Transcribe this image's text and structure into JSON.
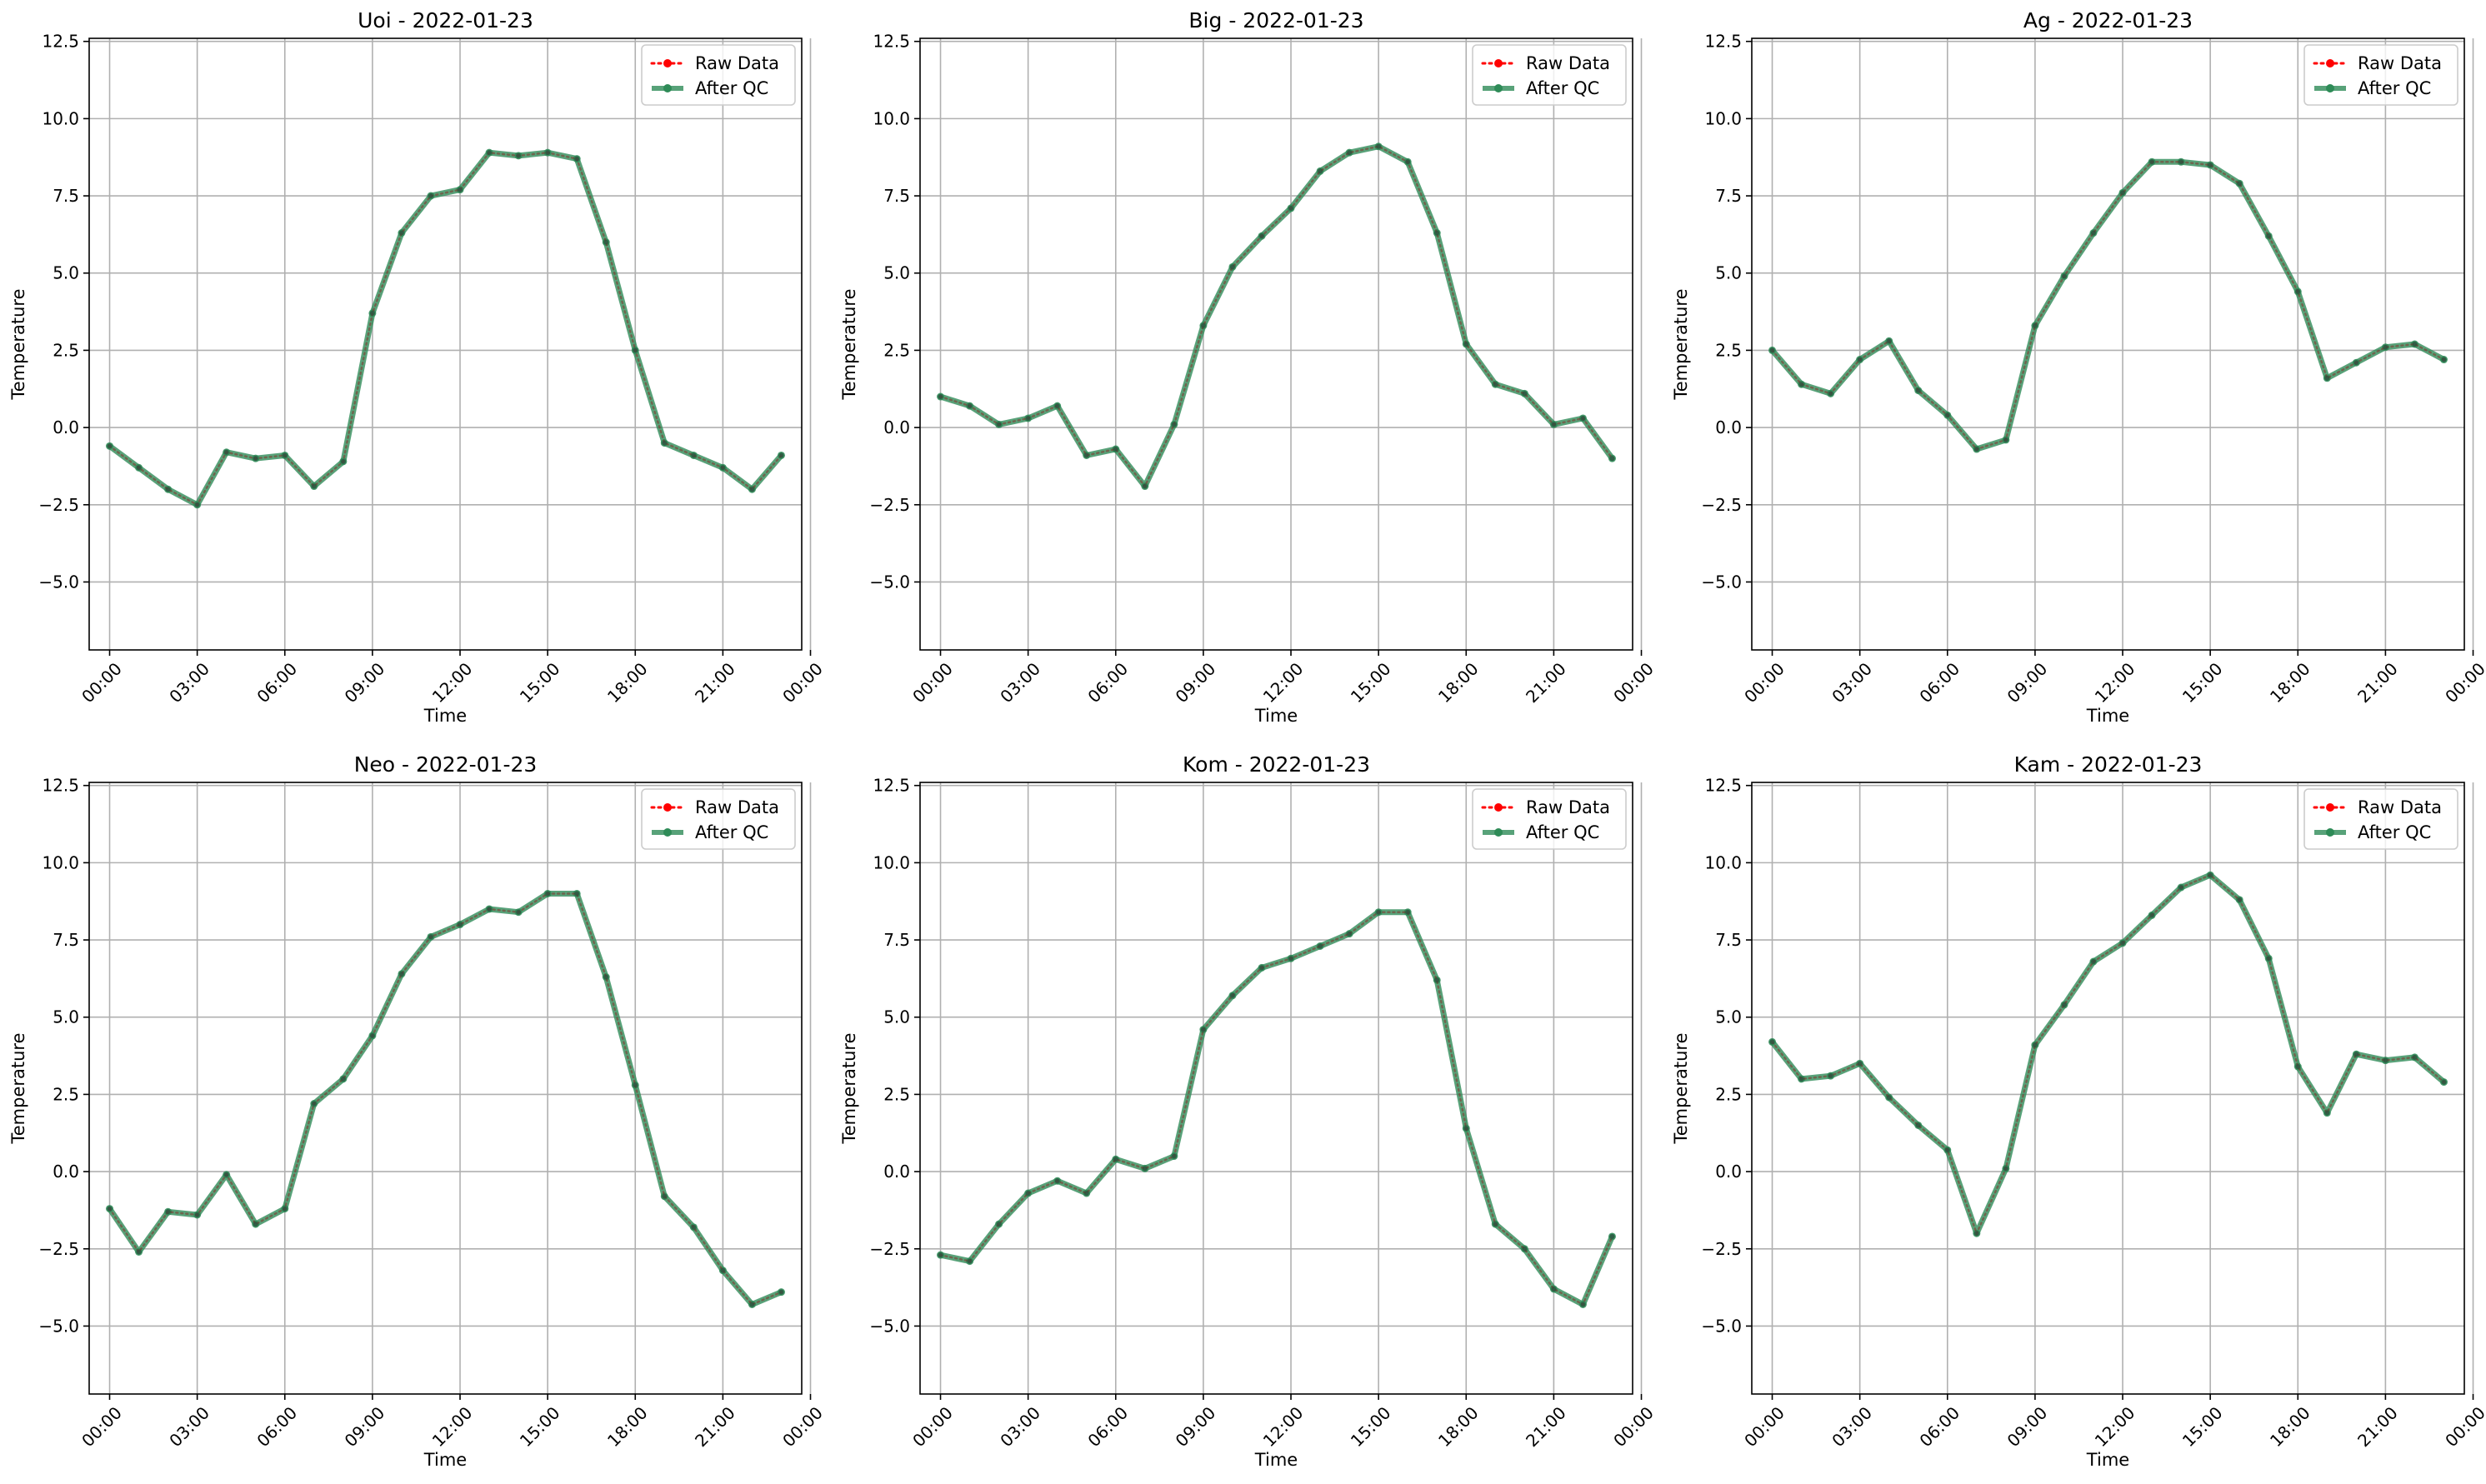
{
  "chart_data": [
    {
      "type": "line",
      "title": "Uoi - 2022-01-23",
      "xlabel": "Time",
      "ylabel": "Temperature",
      "xticks": [
        "00:00",
        "03:00",
        "06:00",
        "09:00",
        "12:00",
        "15:00",
        "18:00",
        "21:00",
        "00:00"
      ],
      "xlim": [
        -0.7,
        23.7
      ],
      "ylim": [
        -7.2,
        12.6
      ],
      "yticks": [
        "−5.0",
        "−2.5",
        "0.0",
        "2.5",
        "5.0",
        "7.5",
        "10.0",
        "12.5"
      ],
      "grid": true,
      "legend": "top-right",
      "x": [
        0,
        1,
        2,
        3,
        4,
        5,
        6,
        7,
        8,
        9,
        10,
        11,
        12,
        13,
        14,
        15,
        16,
        17,
        18,
        19,
        20,
        21,
        22,
        23
      ],
      "series": [
        {
          "name": "Raw Data",
          "style": "dotted",
          "color": "#ff0000",
          "values": [
            -0.6,
            -1.3,
            -2.0,
            -2.5,
            -0.8,
            -1.0,
            -0.9,
            -1.9,
            -1.1,
            3.7,
            6.3,
            7.5,
            7.7,
            8.9,
            8.8,
            8.9,
            8.7,
            6.0,
            2.5,
            -0.5,
            -0.9,
            -1.3,
            -2.0,
            -0.9
          ]
        },
        {
          "name": "After QC",
          "style": "solid",
          "color": "#2e8b57",
          "values": [
            -0.6,
            -1.3,
            -2.0,
            -2.5,
            -0.8,
            -1.0,
            -0.9,
            -1.9,
            -1.1,
            3.7,
            6.3,
            7.5,
            7.7,
            8.9,
            8.8,
            8.9,
            8.7,
            6.0,
            2.5,
            -0.5,
            -0.9,
            -1.3,
            -2.0,
            -0.9
          ]
        }
      ]
    },
    {
      "type": "line",
      "title": "Big - 2022-01-23",
      "xlabel": "Time",
      "ylabel": "Temperature",
      "xticks": [
        "00:00",
        "03:00",
        "06:00",
        "09:00",
        "12:00",
        "15:00",
        "18:00",
        "21:00",
        "00:00"
      ],
      "xlim": [
        -0.7,
        23.7
      ],
      "ylim": [
        -7.2,
        12.6
      ],
      "yticks": [
        "−5.0",
        "−2.5",
        "0.0",
        "2.5",
        "5.0",
        "7.5",
        "10.0",
        "12.5"
      ],
      "grid": true,
      "legend": "top-right",
      "x": [
        0,
        1,
        2,
        3,
        4,
        5,
        6,
        7,
        8,
        9,
        10,
        11,
        12,
        13,
        14,
        15,
        16,
        17,
        18,
        19,
        20,
        21,
        22,
        23
      ],
      "series": [
        {
          "name": "Raw Data",
          "style": "dotted",
          "color": "#ff0000",
          "values": [
            1.0,
            0.7,
            0.1,
            0.3,
            0.7,
            -0.9,
            -0.7,
            -1.9,
            0.1,
            3.3,
            5.2,
            6.2,
            7.1,
            8.3,
            8.9,
            9.1,
            8.6,
            6.3,
            2.7,
            1.4,
            1.1,
            0.1,
            0.3,
            -1.0
          ]
        },
        {
          "name": "After QC",
          "style": "solid",
          "color": "#2e8b57",
          "values": [
            1.0,
            0.7,
            0.1,
            0.3,
            0.7,
            -0.9,
            -0.7,
            -1.9,
            0.1,
            3.3,
            5.2,
            6.2,
            7.1,
            8.3,
            8.9,
            9.1,
            8.6,
            6.3,
            2.7,
            1.4,
            1.1,
            0.1,
            0.3,
            -1.0
          ]
        }
      ]
    },
    {
      "type": "line",
      "title": "Ag - 2022-01-23",
      "xlabel": "Time",
      "ylabel": "Temperature",
      "xticks": [
        "00:00",
        "03:00",
        "06:00",
        "09:00",
        "12:00",
        "15:00",
        "18:00",
        "21:00",
        "00:00"
      ],
      "xlim": [
        -0.7,
        23.7
      ],
      "ylim": [
        -7.2,
        12.6
      ],
      "yticks": [
        "−5.0",
        "−2.5",
        "0.0",
        "2.5",
        "5.0",
        "7.5",
        "10.0",
        "12.5"
      ],
      "grid": true,
      "legend": "top-right",
      "x": [
        0,
        1,
        2,
        3,
        4,
        5,
        6,
        7,
        8,
        9,
        10,
        11,
        12,
        13,
        14,
        15,
        16,
        17,
        18,
        19,
        20,
        21,
        22,
        23
      ],
      "series": [
        {
          "name": "Raw Data",
          "style": "dotted",
          "color": "#ff0000",
          "values": [
            2.5,
            1.4,
            1.1,
            2.2,
            2.8,
            1.2,
            0.4,
            -0.7,
            -0.4,
            3.3,
            4.9,
            6.3,
            7.6,
            8.6,
            8.6,
            8.5,
            7.9,
            6.2,
            4.4,
            1.6,
            2.1,
            2.6,
            2.7,
            2.2
          ]
        },
        {
          "name": "After QC",
          "style": "solid",
          "color": "#2e8b57",
          "values": [
            2.5,
            1.4,
            1.1,
            2.2,
            2.8,
            1.2,
            0.4,
            -0.7,
            -0.4,
            3.3,
            4.9,
            6.3,
            7.6,
            8.6,
            8.6,
            8.5,
            7.9,
            6.2,
            4.4,
            1.6,
            2.1,
            2.6,
            2.7,
            2.2
          ]
        }
      ]
    },
    {
      "type": "line",
      "title": "Neo - 2022-01-23",
      "xlabel": "Time",
      "ylabel": "Temperature",
      "xticks": [
        "00:00",
        "03:00",
        "06:00",
        "09:00",
        "12:00",
        "15:00",
        "18:00",
        "21:00",
        "00:00"
      ],
      "xlim": [
        -0.7,
        23.7
      ],
      "ylim": [
        -7.2,
        12.6
      ],
      "yticks": [
        "−5.0",
        "−2.5",
        "0.0",
        "2.5",
        "5.0",
        "7.5",
        "10.0",
        "12.5"
      ],
      "grid": true,
      "legend": "top-right",
      "x": [
        0,
        1,
        2,
        3,
        4,
        5,
        6,
        7,
        8,
        9,
        10,
        11,
        12,
        13,
        14,
        15,
        16,
        17,
        18,
        19,
        20,
        21,
        22,
        23
      ],
      "series": [
        {
          "name": "Raw Data",
          "style": "dotted",
          "color": "#ff0000",
          "values": [
            -1.2,
            -2.6,
            -1.3,
            -1.4,
            -0.1,
            -1.7,
            -1.2,
            2.2,
            3.0,
            4.4,
            6.4,
            7.6,
            8.0,
            8.5,
            8.4,
            9.0,
            9.0,
            6.3,
            2.8,
            -0.8,
            -1.8,
            -3.2,
            -4.3,
            -3.9
          ]
        },
        {
          "name": "After QC",
          "style": "solid",
          "color": "#2e8b57",
          "values": [
            -1.2,
            -2.6,
            -1.3,
            -1.4,
            -0.1,
            -1.7,
            -1.2,
            2.2,
            3.0,
            4.4,
            6.4,
            7.6,
            8.0,
            8.5,
            8.4,
            9.0,
            9.0,
            6.3,
            2.8,
            -0.8,
            -1.8,
            -3.2,
            -4.3,
            -3.9
          ]
        }
      ]
    },
    {
      "type": "line",
      "title": "Kom - 2022-01-23",
      "xlabel": "Time",
      "ylabel": "Temperature",
      "xticks": [
        "00:00",
        "03:00",
        "06:00",
        "09:00",
        "12:00",
        "15:00",
        "18:00",
        "21:00",
        "00:00"
      ],
      "xlim": [
        -0.7,
        23.7
      ],
      "ylim": [
        -7.2,
        12.6
      ],
      "yticks": [
        "−5.0",
        "−2.5",
        "0.0",
        "2.5",
        "5.0",
        "7.5",
        "10.0",
        "12.5"
      ],
      "grid": true,
      "legend": "top-right",
      "x": [
        0,
        1,
        2,
        3,
        4,
        5,
        6,
        7,
        8,
        9,
        10,
        11,
        12,
        13,
        14,
        15,
        16,
        17,
        18,
        19,
        20,
        21,
        22,
        23
      ],
      "series": [
        {
          "name": "Raw Data",
          "style": "dotted",
          "color": "#ff0000",
          "values": [
            -2.7,
            -2.9,
            -1.7,
            -0.7,
            -0.3,
            -0.7,
            0.4,
            0.1,
            0.5,
            4.6,
            5.7,
            6.6,
            6.9,
            7.3,
            7.7,
            8.4,
            8.4,
            6.2,
            1.4,
            -1.7,
            -2.5,
            -3.8,
            -4.3,
            -2.1
          ]
        },
        {
          "name": "After QC",
          "style": "solid",
          "color": "#2e8b57",
          "values": [
            -2.7,
            -2.9,
            -1.7,
            -0.7,
            -0.3,
            -0.7,
            0.4,
            0.1,
            0.5,
            4.6,
            5.7,
            6.6,
            6.9,
            7.3,
            7.7,
            8.4,
            8.4,
            6.2,
            1.4,
            -1.7,
            -2.5,
            -3.8,
            -4.3,
            -2.1
          ]
        }
      ]
    },
    {
      "type": "line",
      "title": "Kam - 2022-01-23",
      "xlabel": "Time",
      "ylabel": "Temperature",
      "xticks": [
        "00:00",
        "03:00",
        "06:00",
        "09:00",
        "12:00",
        "15:00",
        "18:00",
        "21:00",
        "00:00"
      ],
      "xlim": [
        -0.7,
        23.7
      ],
      "ylim": [
        -7.2,
        12.6
      ],
      "yticks": [
        "−5.0",
        "−2.5",
        "0.0",
        "2.5",
        "5.0",
        "7.5",
        "10.0",
        "12.5"
      ],
      "grid": true,
      "legend": "top-right",
      "x": [
        0,
        1,
        2,
        3,
        4,
        5,
        6,
        7,
        8,
        9,
        10,
        11,
        12,
        13,
        14,
        15,
        16,
        17,
        18,
        19,
        20,
        21,
        22,
        23
      ],
      "series": [
        {
          "name": "Raw Data",
          "style": "dotted",
          "color": "#ff0000",
          "values": [
            4.2,
            3.0,
            3.1,
            3.5,
            2.4,
            1.5,
            0.7,
            -2.0,
            0.1,
            4.1,
            5.4,
            6.8,
            7.4,
            8.3,
            9.2,
            9.6,
            8.8,
            6.9,
            3.4,
            1.9,
            3.8,
            3.6,
            3.7,
            2.9
          ]
        },
        {
          "name": "After QC",
          "style": "solid",
          "color": "#2e8b57",
          "values": [
            4.2,
            3.0,
            3.1,
            3.5,
            2.4,
            1.5,
            0.7,
            -2.0,
            0.1,
            4.1,
            5.4,
            6.8,
            7.4,
            8.3,
            9.2,
            9.6,
            8.8,
            6.9,
            3.4,
            1.9,
            3.8,
            3.6,
            3.7,
            2.9
          ]
        }
      ]
    }
  ]
}
